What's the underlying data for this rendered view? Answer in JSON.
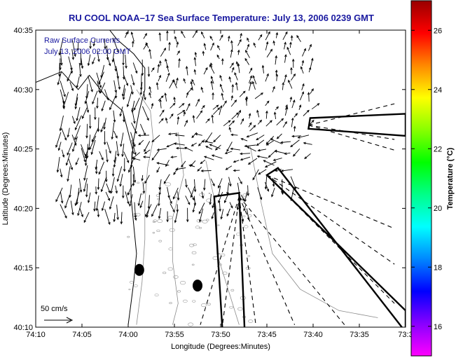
{
  "chart_data": {
    "type": "vector-field-map",
    "title": "RU COOL  NOAA–17  Sea Surface Temperature:  July 13, 2006 0239 GMT",
    "xlabel": "Longitude (Degrees:Minutes)",
    "ylabel": "Latitude (Degrees:Minutes)",
    "x_ticks": [
      "74:10",
      "74:05",
      "74:00",
      "73:55",
      "73:50",
      "73:45",
      "73:40",
      "73:35",
      "73:3"
    ],
    "y_ticks": [
      "40:10",
      "40:15",
      "40:20",
      "40:25",
      "40:30",
      "40:35"
    ],
    "xlim_min": [
      -74.1667,
      -73.5
    ],
    "ylim_min": [
      40.1667,
      40.5833
    ],
    "annotations": [
      "Raw Surface Currents",
      "July 13, 2006 02:00 GMT"
    ],
    "scale_label": "50 cm/s",
    "colorbar": {
      "label": "Temperature (°C)",
      "ticks": [
        "26",
        "24",
        "22",
        "20",
        "18",
        "16"
      ],
      "range": [
        15,
        27
      ],
      "colors": [
        "#ff00ff",
        "#8800ff",
        "#0000ff",
        "#0088ff",
        "#00ffff",
        "#00ff88",
        "#00ff00",
        "#88ff00",
        "#ffff00",
        "#ff8800",
        "#ff0000",
        "#990000"
      ]
    },
    "markers": [
      {
        "lon": -73.98,
        "lat": 40.247
      },
      {
        "lon": -73.875,
        "lat": 40.225
      }
    ],
    "boxes": [
      [
        [
          -73.672,
          40.46
        ],
        [
          -73.5,
          40.466
        ],
        [
          -73.5,
          40.435
        ],
        [
          -73.675,
          40.445
        ]
      ],
      [
        [
          -73.75,
          40.38
        ],
        [
          -73.5,
          40.19
        ],
        [
          -73.5,
          40.16
        ],
        [
          -73.73,
          40.39
        ]
      ],
      [
        [
          -73.83,
          40.16
        ],
        [
          -73.845,
          40.35
        ],
        [
          -73.8,
          40.355
        ],
        [
          -73.79,
          40.16
        ]
      ]
    ],
    "beams": [
      [
        [
          -73.675,
          40.45
        ],
        [
          -73.52,
          40.48
        ]
      ],
      [
        [
          -73.675,
          40.45
        ],
        [
          -73.52,
          40.43
        ]
      ],
      [
        [
          -73.675,
          40.45
        ],
        [
          -73.52,
          40.415
        ]
      ],
      [
        [
          -73.75,
          40.38
        ],
        [
          -73.52,
          40.305
        ]
      ],
      [
        [
          -73.75,
          40.38
        ],
        [
          -73.52,
          40.255
        ]
      ],
      [
        [
          -73.75,
          40.38
        ],
        [
          -73.52,
          40.2
        ]
      ],
      [
        [
          -73.8,
          40.35
        ],
        [
          -73.61,
          40.17
        ]
      ],
      [
        [
          -73.8,
          40.35
        ],
        [
          -73.7,
          40.17
        ]
      ],
      [
        [
          -73.8,
          40.35
        ],
        [
          -73.77,
          40.17
        ]
      ],
      [
        [
          -73.8,
          40.35
        ],
        [
          -73.83,
          40.17
        ]
      ],
      [
        [
          -73.8,
          40.35
        ],
        [
          -73.87,
          40.17
        ]
      ]
    ],
    "coastline": [
      [
        -74.05,
        40.6
      ],
      [
        -74.02,
        40.57
      ],
      [
        -73.99,
        40.55
      ],
      [
        -73.97,
        40.53
      ],
      [
        -73.97,
        40.5
      ],
      [
        -73.98,
        40.47
      ],
      [
        -73.99,
        40.43
      ],
      [
        -73.995,
        40.39
      ],
      [
        -73.995,
        40.35
      ],
      [
        -73.99,
        40.31
      ],
      [
        -73.985,
        40.27
      ],
      [
        -73.99,
        40.23
      ],
      [
        -73.995,
        40.2
      ],
      [
        -74.0,
        40.17
      ]
    ],
    "shoreline_north": [
      [
        -74.1667,
        40.51
      ],
      [
        -74.12,
        40.525
      ],
      [
        -74.09,
        40.5
      ],
      [
        -74.07,
        40.52
      ],
      [
        -74.04,
        40.49
      ],
      [
        -74.01,
        40.47
      ],
      [
        -74.0,
        40.44
      ],
      [
        -73.99,
        40.41
      ]
    ],
    "isobaths": [
      [
        [
          -73.985,
          40.5
        ],
        [
          -73.96,
          40.47
        ],
        [
          -73.955,
          40.43
        ],
        [
          -73.965,
          40.39
        ],
        [
          -73.97,
          40.34
        ],
        [
          -73.97,
          40.29
        ],
        [
          -73.975,
          40.23
        ],
        [
          -73.985,
          40.17
        ]
      ],
      [
        [
          -73.91,
          40.44
        ],
        [
          -73.9,
          40.38
        ],
        [
          -73.92,
          40.32
        ],
        [
          -73.92,
          40.26
        ],
        [
          -73.91,
          40.2
        ],
        [
          -73.92,
          40.17
        ]
      ],
      [
        [
          -73.86,
          40.4
        ],
        [
          -73.84,
          40.33
        ],
        [
          -73.84,
          40.27
        ],
        [
          -73.82,
          40.22
        ],
        [
          -73.8,
          40.17
        ]
      ],
      [
        [
          -73.78,
          40.42
        ],
        [
          -73.76,
          40.34
        ],
        [
          -73.74,
          40.27
        ],
        [
          -73.69,
          40.22
        ],
        [
          -73.62,
          40.19
        ],
        [
          -73.55,
          40.18
        ]
      ]
    ],
    "current_field": {
      "units": "cm/s",
      "lon_range": [
        -74.12,
        -73.66
      ],
      "lat_range": [
        40.33,
        40.58
      ],
      "grid_step_deg": 0.016
    }
  }
}
